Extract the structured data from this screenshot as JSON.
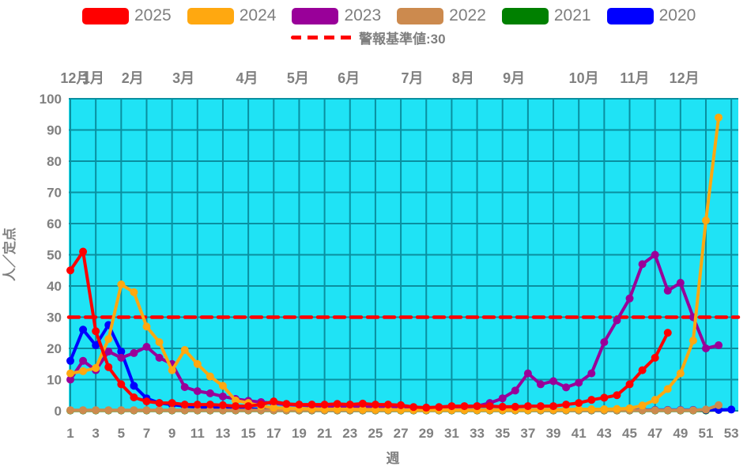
{
  "legend": {
    "items": [
      {
        "label": "2025",
        "color": "#ff0000"
      },
      {
        "label": "2024",
        "color": "#ffa810"
      },
      {
        "label": "2023",
        "color": "#990099"
      },
      {
        "label": "2022",
        "color": "#cc8a4e"
      },
      {
        "label": "2021",
        "color": "#008000"
      },
      {
        "label": "2020",
        "color": "#0000ff"
      }
    ]
  },
  "alert": {
    "label": "警報基準値:30",
    "value": 30,
    "color": "#ff0000"
  },
  "axes": {
    "y_label": "人／定点",
    "x_label": "週",
    "y_ticks": [
      0,
      10,
      20,
      30,
      40,
      50,
      60,
      70,
      80,
      90,
      100
    ],
    "x_ticks": [
      1,
      3,
      5,
      7,
      9,
      11,
      13,
      15,
      17,
      19,
      21,
      23,
      25,
      27,
      29,
      31,
      33,
      35,
      37,
      39,
      41,
      43,
      45,
      47,
      49,
      51,
      53
    ],
    "month_labels": [
      {
        "text": "12月",
        "week": 1.4
      },
      {
        "text": "1月",
        "week": 2.8
      },
      {
        "text": "2月",
        "week": 5.9
      },
      {
        "text": "3月",
        "week": 9.9
      },
      {
        "text": "4月",
        "week": 14.9
      },
      {
        "text": "5月",
        "week": 18.9
      },
      {
        "text": "6月",
        "week": 22.9
      },
      {
        "text": "7月",
        "week": 27.9
      },
      {
        "text": "8月",
        "week": 31.9
      },
      {
        "text": "9月",
        "week": 35.9
      },
      {
        "text": "10月",
        "week": 41.4
      },
      {
        "text": "11月",
        "week": 45.4
      },
      {
        "text": "12月",
        "week": 49.3
      }
    ]
  },
  "chart_data": {
    "type": "line",
    "title": "",
    "xlabel": "週",
    "ylabel": "人／定点",
    "x_range": [
      1,
      53
    ],
    "y_range": [
      0,
      100
    ],
    "grid": true,
    "plot_bg": "#1fe3f5",
    "grid_color": "#0a8fa0",
    "alert_threshold": 30,
    "alert_color": "#ff0000",
    "legend_position": "top",
    "z_order": [
      "2021",
      "2020",
      "2022",
      "2023",
      "2024",
      "2025"
    ],
    "series": [
      {
        "name": "2025",
        "color": "#ff0000",
        "start_week": 1,
        "values": [
          45,
          51,
          25.5,
          14,
          8.5,
          4.3,
          3,
          2.5,
          2.5,
          2,
          2,
          2,
          1.8,
          1.5,
          1.5,
          2,
          3,
          2.2,
          2,
          2,
          2,
          2.2,
          2,
          2.3,
          2,
          2,
          1.8,
          1.2,
          1,
          1.2,
          1.5,
          1.5,
          1.5,
          1.5,
          1.3,
          1.3,
          1.5,
          1.5,
          1.5,
          2,
          2.5,
          3.5,
          4.2,
          5,
          8.5,
          13,
          17,
          25
        ]
      },
      {
        "name": "2024",
        "color": "#ffa810",
        "start_week": 1,
        "values": [
          12,
          12.7,
          13.7,
          23,
          40.5,
          38,
          27,
          22,
          13,
          19.5,
          15,
          11,
          8,
          3.3,
          2.5,
          1.5,
          1,
          0.8,
          0.7,
          0.6,
          0.5,
          0.5,
          0.5,
          0.4,
          0.4,
          0.4,
          0.3,
          0.3,
          0.3,
          0.3,
          0.3,
          0.3,
          0.3,
          0.3,
          0.3,
          0.3,
          0.3,
          0.4,
          0.4,
          0.4,
          0.5,
          0.5,
          0.5,
          0.6,
          0.8,
          1.7,
          3.5,
          7,
          12,
          22.5,
          61,
          94
        ]
      },
      {
        "name": "2023",
        "color": "#990099",
        "start_week": 1,
        "values": [
          10,
          16,
          13,
          19,
          17,
          18.5,
          20.5,
          17,
          15,
          7.6,
          6.3,
          5.6,
          4.6,
          3.8,
          3.2,
          2.8,
          2.4,
          2,
          1.8,
          1.6,
          1.5,
          1.4,
          1.3,
          1.2,
          1.2,
          1.1,
          1,
          1,
          1,
          1,
          1.1,
          1.2,
          1.5,
          2.5,
          4,
          6.5,
          12,
          8.5,
          9.5,
          7.5,
          9,
          12,
          22,
          29,
          36,
          47,
          50,
          38.5,
          41,
          30,
          20,
          21
        ]
      },
      {
        "name": "2022",
        "color": "#cc8a4e",
        "start_week": 1,
        "values": [
          0.2,
          0.2,
          0.2,
          0.2,
          0.2,
          0.2,
          0.2,
          0.2,
          0.2,
          0.2,
          0.2,
          0.2,
          0.2,
          0.2,
          0.2,
          0.2,
          0.2,
          0.2,
          0.2,
          0.2,
          0.2,
          0.2,
          0.2,
          0.2,
          0.2,
          0.2,
          0.2,
          0.2,
          0.2,
          0.2,
          0.2,
          0.2,
          0.2,
          0.2,
          0.2,
          0.2,
          0.2,
          0.2,
          0.2,
          0.2,
          0.2,
          0.2,
          0.2,
          0.2,
          0.2,
          0.2,
          0.2,
          0.2,
          0.2,
          0.2,
          0.4,
          1.8
        ]
      },
      {
        "name": "2021",
        "color": "#008000",
        "start_week": 1,
        "values": [
          0.1,
          0.1,
          0.1,
          0.1,
          0.1,
          0.1,
          0.1,
          0.1,
          0.1,
          0.1,
          0.1,
          0.1,
          0.1,
          0.1,
          0.1,
          0.1,
          0.1,
          0.1,
          0.1,
          0.1,
          0.1,
          0.1,
          0.1,
          0.1,
          0.1,
          0.1,
          0.1,
          0.1,
          0.1,
          0.1,
          0.1,
          0.1,
          0.1,
          0.1,
          0.1,
          0.1,
          0.1,
          0.1,
          0.1,
          0.1,
          0.1,
          0.1,
          0.1,
          0.1,
          0.1,
          0.1,
          0.1,
          0.1,
          0.1,
          0.1,
          0.1,
          0.3
        ]
      },
      {
        "name": "2020",
        "color": "#0000ff",
        "start_week": 1,
        "values": [
          16,
          26,
          21,
          27.5,
          19,
          8,
          4,
          2.5,
          2,
          1.5,
          1.2,
          1,
          0.8,
          0.7,
          0.6,
          0.5,
          0.3,
          0.3,
          0.3,
          0.3,
          0.3,
          0.3,
          0.3,
          0.3,
          0.3,
          0.3,
          0.3,
          0.3,
          0.3,
          0.3,
          0.3,
          0.3,
          0.3,
          0.3,
          0.3,
          0.3,
          0.3,
          0.3,
          0.3,
          0.3,
          0.3,
          0.3,
          0.3,
          0.3,
          0.3,
          0.3,
          0.3,
          0.3,
          0.3,
          0.3,
          0.3,
          0.3,
          0.4
        ]
      }
    ]
  }
}
